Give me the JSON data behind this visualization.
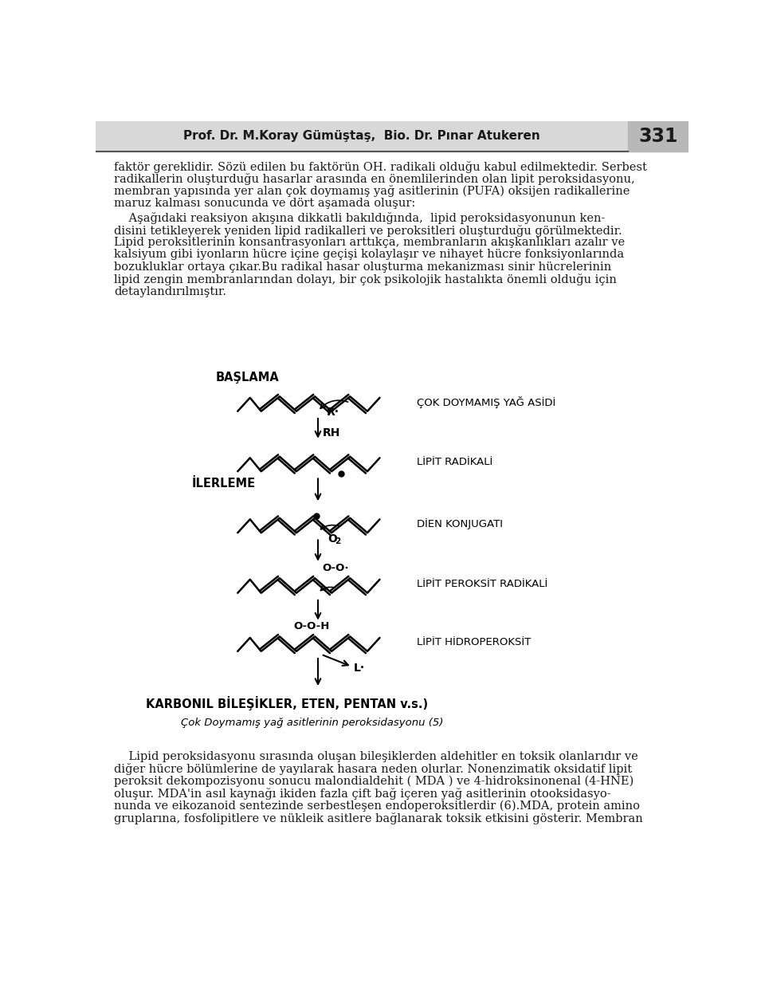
{
  "header_text": "Prof. Dr. M.Koray Gümüştaş,  Bio. Dr. Pınar Atukeren",
  "page_number": "331",
  "bg_color": "#ffffff",
  "text_color": "#1a1a1a",
  "top_para_lines": [
    "faktör gereklidir. Sözü edilen bu faktörün OH. radikali olduğu kabul edilmektedir. Serbest",
    "radikallerin oluşturduğu hasarlar arasında en önemlilerinden olan lipit peroksidasyonu,",
    "membran yapısında yer alan çok doymamış yağ asitlerinin (PUFA) oksijen radikallerine",
    "maruz kalması sonucunda ve dört aşamada oluşur:"
  ],
  "indent_lines": [
    "    Aşağıdaki reaksiyon akışına dikkatli bakıldığında,  lipid peroksidasyonunun ken-",
    "disini tetikleyerek yeniden lipid radikalleri ve peroksitleri oluşturduğu görülmektedir.",
    "Lipid peroksitlerinin konsantrasyonları arttıkça, membranların akışkanlıkları azalır ve",
    "kalsiyum gibi iyonların hücre içine geçişi kolaylaşır ve nihayet hücre fonksiyonlarında",
    "bozukluklar ortaya çıkar.Bu radikal hasar oluşturma mekanizması sinir hücrelerinin",
    "lipid zengin membranlarından dolayı, bir çok psikolojik hastalıkta önemli olduğu için",
    "detaylandırılmıştır."
  ],
  "bottom_para_lines": [
    "    Lipid peroksidasyonu sırasında oluşan bileşiklerden aldehitler en toksik olanlarıdır ve",
    "diğer hücre bölümlerine de yayılarak hasara neden olurlar. Nonenzimatik oksidatif lipit",
    "peroksit dekompozisyonu sonucu malondialdehit ( MDA ) ve 4-hidroksinonenal (4-HNE)",
    "oluşur. MDA'in asıl kaynağı ikiden fazla çift bağ içeren yağ asitlerinin otooksidasyo-",
    "nunda ve eikozanoid sentezinde serbestleşen endoperoksitlerdir (6).MDA, protein amino",
    "gruplarına, fosfolipitlere ve nükleik asitlere bağlanarak toksik etkisini gösterir. Membran"
  ],
  "label_BASLAMA": "BAŞLAMA",
  "label_COK": "ÇOK DOYMAMIŞ YAĞ ASİDİ",
  "label_LIPIT_RAD": "LİPİT RADİKALİ",
  "label_ILERLEME": "İLERLEME",
  "label_DIEN": "DİEN KONJUGATI",
  "label_LIPIT_PEROKSIT": "LİPİT PEROKSİT RADİKALİ",
  "label_LIPIT_HIDRO": "LİPİT HİDROPEROKSİT",
  "label_R_dot": "R·",
  "label_RH": "RH",
  "label_O2": "O",
  "label_O2_sub": "2",
  "label_OO_dot": "O-O·",
  "label_OOH": "O-O-H",
  "label_L_dot": "L·",
  "label_KARBONIL": "KARBONIL BİLEŞİKLER, ETEN, PENTAN v.s.)",
  "label_caption": "Çok Doymamış yağ asitlerinin peroksidasyonu (5)"
}
